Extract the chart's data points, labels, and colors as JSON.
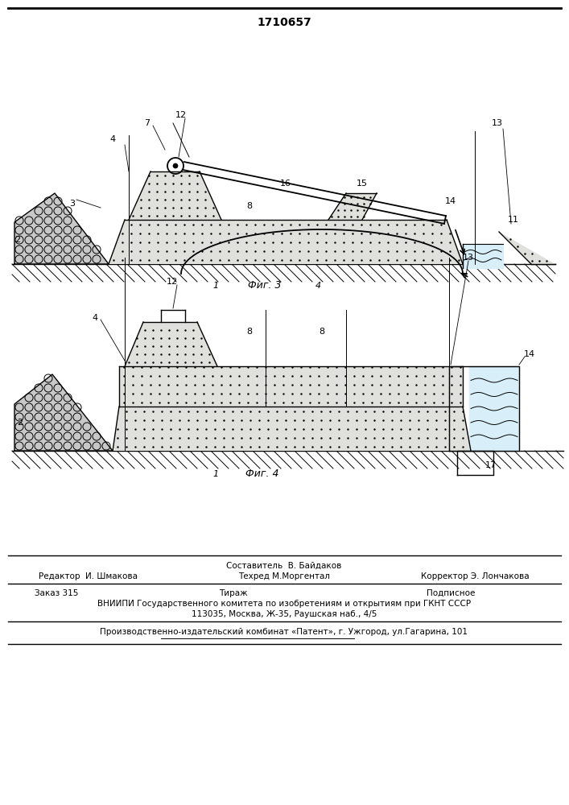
{
  "title": "1710657",
  "title_fontsize": 10,
  "fig1_caption": "Фиг. 3",
  "fig2_caption": "Фиг. 4",
  "footer_line1": "Составитель  В. Байдаков",
  "footer_line2_left": "Редактор  И. Шмакова",
  "footer_line2_mid": "Техред М.Моргентал",
  "footer_line2_right": "Корректор Э. Лончакова",
  "footer_line3_left": "Заказ 315",
  "footer_line3_mid": "Тираж",
  "footer_line3_right": "Подписное",
  "footer_line4": "ВНИИПИ Государственного комитета по изобретениям и открытиям при ГКНТ СССР",
  "footer_line5": "113035, Москва, Ж-35, Раушская наб., 4/5",
  "footer_line6": "Производственно-издательский комбинат «Патент», г. Ужгород, ул.Гагарина, 101",
  "bg_color": "#ffffff",
  "lw": 1.0
}
